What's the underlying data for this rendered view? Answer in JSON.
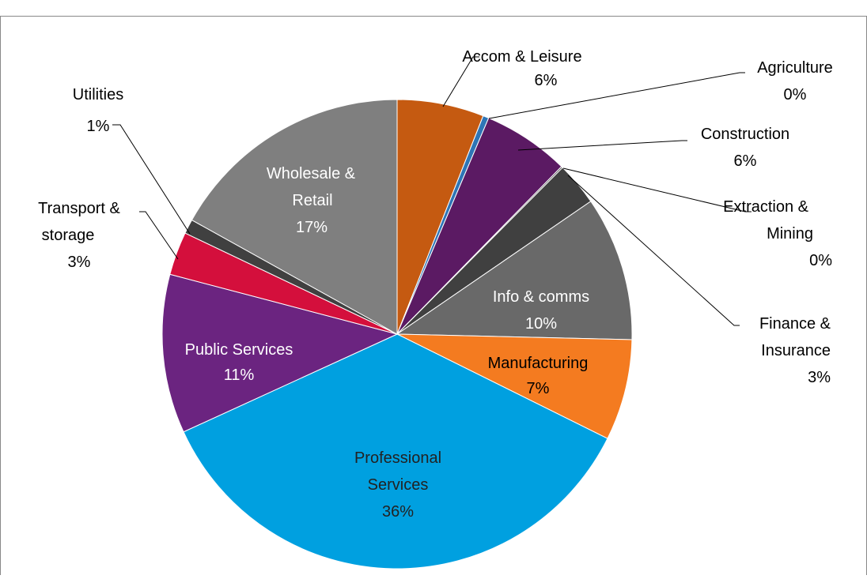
{
  "chart_data": {
    "type": "pie",
    "title": "",
    "start_angle_deg": 0,
    "direction": "clockwise",
    "slices": [
      {
        "label": "Accom & Leisure",
        "value": 6,
        "pct": "6%",
        "color": "#c55a11",
        "label_inside": false,
        "label_text_color": "#000000"
      },
      {
        "label": "Agriculture",
        "value": 0.4,
        "pct": "0%",
        "color": "#2e75b6",
        "label_inside": false,
        "label_text_color": "#000000"
      },
      {
        "label": "Construction",
        "value": 6,
        "pct": "6%",
        "color": "#5b1a63",
        "label_inside": false,
        "label_text_color": "#000000"
      },
      {
        "label": "Extraction & Mining",
        "value": 0.1,
        "pct": "0%",
        "color": "#404040",
        "label_inside": false,
        "label_text_color": "#000000"
      },
      {
        "label": "Finance & Insurance",
        "value": 3,
        "pct": "3%",
        "color": "#404040",
        "label_inside": false,
        "label_text_color": "#000000"
      },
      {
        "label": "Info & comms",
        "value": 10,
        "pct": "10%",
        "color": "#696969",
        "label_inside": true,
        "label_text_color": "#ffffff"
      },
      {
        "label": "Manufacturing",
        "value": 7,
        "pct": "7%",
        "color": "#f47b20",
        "label_inside": true,
        "label_text_color": "#000000"
      },
      {
        "label": "Professional Services",
        "value": 36,
        "pct": "36%",
        "color": "#00a0e0",
        "label_inside": true,
        "label_text_color": "#222222"
      },
      {
        "label": "Public Services",
        "value": 11,
        "pct": "11%",
        "color": "#6b2480",
        "label_inside": true,
        "label_text_color": "#ffffff"
      },
      {
        "label": "Transport & storage",
        "value": 3,
        "pct": "3%",
        "color": "#d40f3c",
        "label_inside": false,
        "label_text_color": "#000000"
      },
      {
        "label": "Utilities",
        "value": 1,
        "pct": "1%",
        "color": "#404040",
        "label_inside": false,
        "label_text_color": "#000000"
      },
      {
        "label": "Wholesale & Retail",
        "value": 17,
        "pct": "17%",
        "color": "#7f7f7f",
        "label_inside": true,
        "label_text_color": "#ffffff"
      }
    ],
    "legend": "none"
  }
}
